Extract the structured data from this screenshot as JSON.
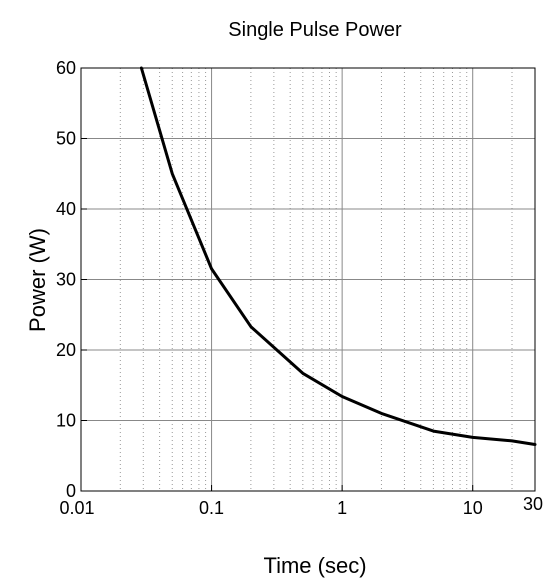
{
  "chart_data": {
    "type": "line",
    "title": "Single Pulse Power",
    "xlabel": "Time (sec)",
    "ylabel": "Power (W)",
    "x_scale": "log",
    "xlim": [
      0.01,
      30
    ],
    "ylim": [
      0,
      60
    ],
    "x_ticks": [
      0.01,
      0.1,
      1,
      10,
      30
    ],
    "x_tick_labels": [
      "0.01",
      "0.1",
      "1",
      "10",
      "30"
    ],
    "y_ticks": [
      0,
      10,
      20,
      30,
      40,
      50,
      60
    ],
    "y_tick_labels": [
      "0",
      "10",
      "20",
      "30",
      "40",
      "50",
      "60"
    ],
    "grid": true,
    "series": [
      {
        "color": "#000000",
        "x": [
          0.029,
          0.05,
          0.1,
          0.2,
          0.5,
          1,
          2,
          5,
          10,
          20,
          30
        ],
        "y": [
          60,
          45,
          31.5,
          23.3,
          16.7,
          13.4,
          11,
          8.5,
          7.6,
          7.1,
          6.6
        ]
      }
    ]
  }
}
